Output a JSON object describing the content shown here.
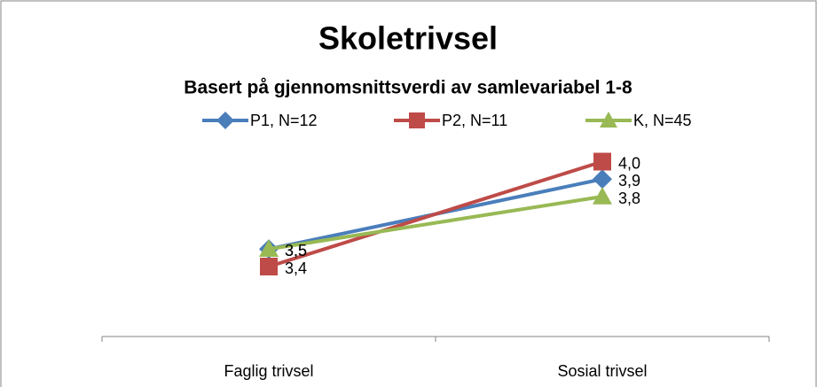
{
  "chart_data": {
    "type": "line",
    "title": "Skoletrivsel",
    "subtitle": "Basert på gjennomsnittsverdi av samlevariabel 1-8",
    "categories": [
      "Faglig trivsel",
      "Sosial trivsel"
    ],
    "series": [
      {
        "name": "P1, N=12",
        "color": "#4a7ebb",
        "marker": "diamond",
        "values": [
          3.5,
          3.9
        ],
        "value_labels": [
          "3,5",
          "3,9"
        ]
      },
      {
        "name": "P2, N=11",
        "color": "#be4b48",
        "marker": "square",
        "values": [
          3.4,
          4.0
        ],
        "value_labels": [
          "3,4",
          "4,0"
        ]
      },
      {
        "name": "K, N=45",
        "color": "#98b954",
        "marker": "triangle",
        "values": [
          3.5,
          3.8
        ],
        "value_labels": [
          "3,5",
          "3,8"
        ]
      }
    ],
    "ylim": [
      3,
      4.2
    ],
    "legend": "top"
  }
}
